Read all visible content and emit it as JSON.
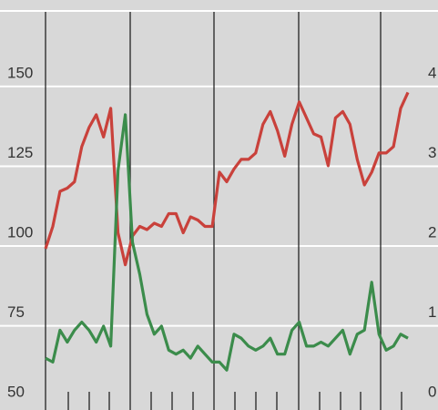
{
  "chart_data": {
    "type": "line",
    "ylim": [
      47.5,
      172.5
    ],
    "yticks": [
      50,
      75,
      100,
      125,
      150
    ],
    "y2lim": [
      -0.1,
      4.9
    ],
    "y2ticks": [
      0,
      1,
      2,
      3,
      4
    ],
    "grid": true,
    "series": [
      {
        "color": "#c9413b",
        "values": [
          98,
          105,
          116,
          117,
          119,
          130,
          136,
          140,
          133,
          142,
          103,
          93,
          102,
          105,
          104,
          106,
          105,
          109,
          109,
          103,
          108,
          107,
          105,
          105,
          122,
          119,
          123,
          126,
          126,
          128,
          137,
          141,
          135,
          127,
          137,
          144,
          139,
          134,
          133,
          124,
          139,
          141,
          137,
          126,
          118,
          122,
          128,
          128,
          130,
          142,
          147
        ]
      },
      {
        "color": "#3b8c4b",
        "axis": "y2",
        "values": [
          0.55,
          0.5,
          0.9,
          0.75,
          0.9,
          1.0,
          0.9,
          0.75,
          0.95,
          0.7,
          2.9,
          3.6,
          2.0,
          1.6,
          1.1,
          0.85,
          0.95,
          0.65,
          0.6,
          0.65,
          0.55,
          0.7,
          0.6,
          0.5,
          0.5,
          0.4,
          0.85,
          0.8,
          0.7,
          0.65,
          0.7,
          0.8,
          0.6,
          0.6,
          0.9,
          1.0,
          0.7,
          0.7,
          0.75,
          0.7,
          0.8,
          0.9,
          0.6,
          0.85,
          0.9,
          1.5,
          0.85,
          0.65,
          0.7,
          0.85,
          0.8
        ]
      }
    ]
  }
}
